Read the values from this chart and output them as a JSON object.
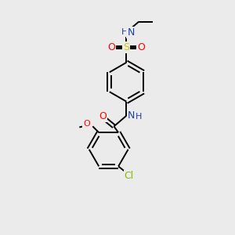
{
  "background_color": "#ebebeb",
  "bond_color": "#000000",
  "atom_colors": {
    "N": "#2040a0",
    "O": "#ff0000",
    "S": "#cccc00",
    "Cl": "#88bb00",
    "C": "#000000",
    "H": "#2040a0"
  },
  "figsize": [
    3.0,
    3.0
  ],
  "dpi": 100,
  "bond_lw": 1.4,
  "font_size": 7.5
}
